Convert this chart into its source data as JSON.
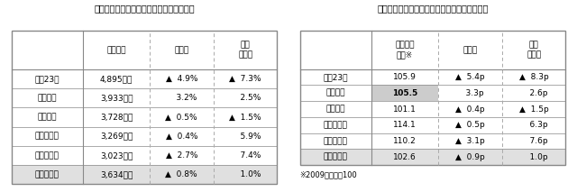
{
  "left_title": "新築戸建の成約価格、前月比、前年同月比",
  "left_col_headers": [
    "成約価格",
    "前月比",
    "前年\n同月比"
  ],
  "left_rows": [
    [
      "東京23区",
      "4,895万円",
      "▲  4.9%",
      "▲  7.3%"
    ],
    [
      "東京都下",
      "3,933万円",
      "    3.2%",
      "    2.5%"
    ],
    [
      "神奈川県",
      "3,728万円",
      "▲  0.5%",
      "▲  1.5%"
    ],
    [
      "埼　玉　県",
      "3,269万円",
      "▲  0.4%",
      "    5.9%"
    ],
    [
      "千　葉　県",
      "3,023万円",
      "▲  2.7%",
      "    7.4%"
    ],
    [
      "首　都　圏",
      "3,634万円",
      "▲  0.8%",
      "    1.0%"
    ]
  ],
  "right_title": "新築戸建の成約価格指数、前月比、前年同月比",
  "right_col_headers": [
    "成約価格\n指数※",
    "前月比",
    "前年\n同月比"
  ],
  "right_rows": [
    [
      "東京23区",
      "105.9",
      "▲  5.4p",
      "▲  8.3p"
    ],
    [
      "東京都下",
      "105.5",
      "    3.3p",
      "    2.6p"
    ],
    [
      "神奈川県",
      "101.1",
      "▲  0.4p",
      "▲  1.5p"
    ],
    [
      "埼　玉　県",
      "114.1",
      "▲  0.5p",
      "    6.3p"
    ],
    [
      "千　葉　県",
      "110.2",
      "▲  3.1p",
      "    7.6p"
    ],
    [
      "首　都　圏",
      "102.6",
      "▲  0.9p",
      "    1.0p"
    ]
  ],
  "footnote": "※2009年１月＝100",
  "highlight_last_row_color": "#e0e0e0",
  "highlight_right_row2_color": "#cccccc",
  "border_color": "#888888",
  "dashed_col_color": "#aaaaaa",
  "bg_color": "#ffffff",
  "text_color": "#000000",
  "title_fontsize": 7.0,
  "cell_fontsize": 6.5,
  "header_fontsize": 6.5,
  "footnote_fontsize": 6.0
}
